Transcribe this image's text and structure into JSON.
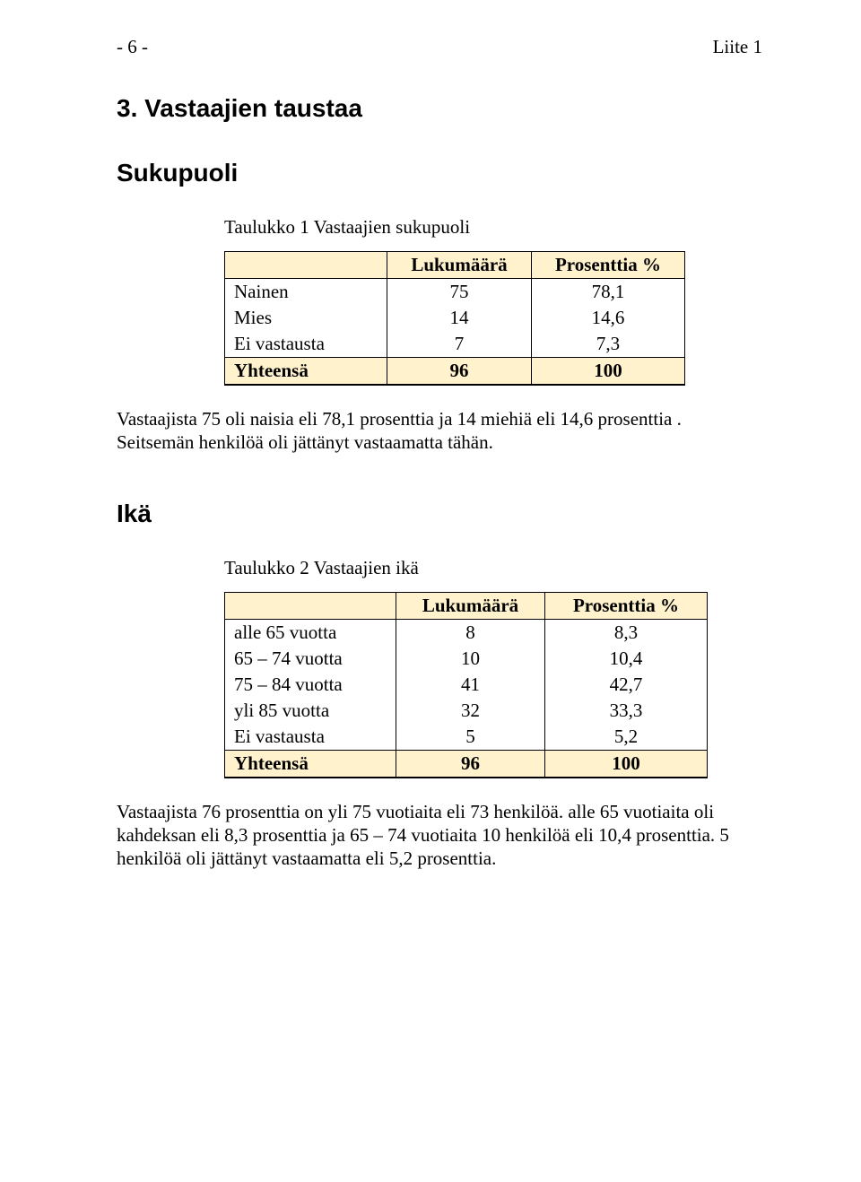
{
  "colors": {
    "highlight": "#fff2cc",
    "text": "#000000",
    "bg": "#ffffff"
  },
  "header": {
    "page_marker": "- 6 -",
    "appendix": "Liite 1"
  },
  "section_title": "3. Vastaajien taustaa",
  "gender": {
    "heading": "Sukupuoli",
    "caption": "Taulukko 1 Vastaajien sukupuoli",
    "columns": [
      "",
      "Lukumäärä",
      "Prosenttia %"
    ],
    "rows": [
      {
        "label": "Nainen",
        "count": "75",
        "pct": "78,1"
      },
      {
        "label": "Mies",
        "count": "14",
        "pct": "14,6"
      },
      {
        "label": "Ei vastausta",
        "count": "7",
        "pct": "7,3"
      }
    ],
    "total": {
      "label": "Yhteensä",
      "count": "96",
      "pct": "100"
    },
    "paragraph": "Vastaajista 75 oli naisia eli 78,1 prosenttia ja 14 miehiä eli 14,6 prosenttia . Seitsemän henkilöä oli jättänyt vastaamatta tähän."
  },
  "age": {
    "heading": "Ikä",
    "caption": "Taulukko 2 Vastaajien ikä",
    "columns": [
      "",
      "Lukumäärä",
      "Prosenttia %"
    ],
    "rows": [
      {
        "label": "alle 65 vuotta",
        "count": "8",
        "pct": "8,3"
      },
      {
        "label": "65 – 74 vuotta",
        "count": "10",
        "pct": "10,4"
      },
      {
        "label": "75 – 84 vuotta",
        "count": "41",
        "pct": "42,7"
      },
      {
        "label": "yli 85 vuotta",
        "count": "32",
        "pct": "33,3"
      },
      {
        "label": "Ei vastausta",
        "count": "5",
        "pct": "5,2"
      }
    ],
    "total": {
      "label": "Yhteensä",
      "count": "96",
      "pct": "100"
    },
    "paragraph": "Vastaajista 76 prosenttia on yli 75 vuotiaita eli 73 henkilöä. alle 65 vuotiaita oli kahdeksan eli 8,3 prosenttia ja 65 – 74 vuotiaita 10 henkilöä eli 10,4 prosenttia. 5 henkilöä oli jättänyt vastaamatta eli 5,2 prosenttia."
  }
}
